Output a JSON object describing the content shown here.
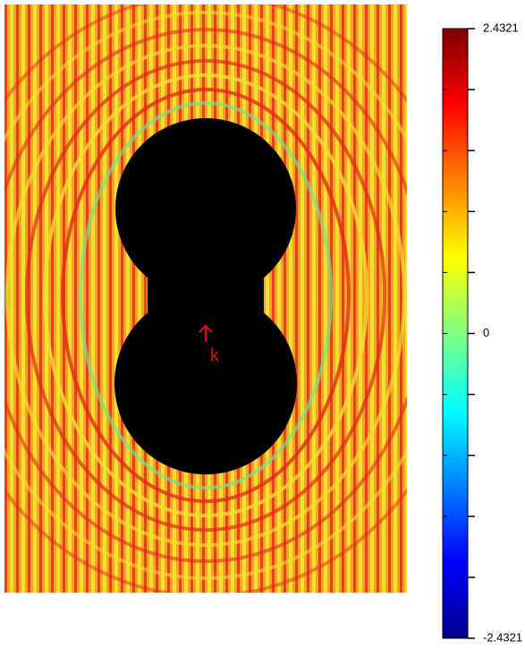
{
  "chart_data": {
    "type": "heatmap",
    "annotation": "k",
    "clim": [
      -2.4321,
      2.4321
    ],
    "cticks": [
      -2.4321,
      {
        "value": -1.9457,
        "label": null
      },
      {
        "value": -1.4593,
        "label": null
      },
      {
        "value": -0.9728,
        "label": null
      },
      {
        "value": -0.4864,
        "label": null
      },
      0,
      {
        "value": 0.4864,
        "label": null
      },
      {
        "value": 0.9728,
        "label": null
      },
      {
        "value": 1.4593,
        "label": null
      },
      {
        "value": 1.9457,
        "label": null
      },
      2.4321
    ],
    "colormap": [
      "#00008f",
      "#0000ff",
      "#0080ff",
      "#00ffff",
      "#80ff80",
      "#ffff00",
      "#ff8000",
      "#ff0000",
      "#800000"
    ]
  }
}
